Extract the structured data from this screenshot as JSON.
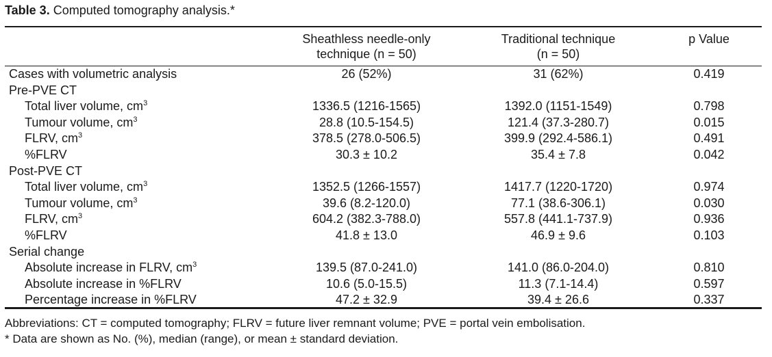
{
  "caption": {
    "label": "Table 3.",
    "text": " Computed tomography analysis.*"
  },
  "headers": {
    "col1_line1": "Sheathless needle-only",
    "col1_line2": "technique (n = 50)",
    "col2_line1": "Traditional technique",
    "col2_line2": "(n = 50)",
    "col3": "p Value"
  },
  "rows": [
    {
      "label": "Cases with volumetric analysis",
      "unit": "",
      "c1": "26 (52%)",
      "c2": "31 (62%)",
      "c3": "0.419"
    },
    {
      "label": "Pre-PVE CT",
      "unit": "",
      "c1": "",
      "c2": "",
      "c3": ""
    },
    {
      "label": "Total liver volume, cm",
      "unit": "3",
      "c1": "1336.5 (1216-1565)",
      "c2": "1392.0 (1151-1549)",
      "c3": "0.798"
    },
    {
      "label": "Tumour volume, cm",
      "unit": "3",
      "c1": "28.8 (10.5-154.5)",
      "c2": "121.4 (37.3-280.7)",
      "c3": "0.015"
    },
    {
      "label": "FLRV, cm",
      "unit": "3",
      "c1": "378.5 (278.0-506.5)",
      "c2": "399.9 (292.4-586.1)",
      "c3": "0.491"
    },
    {
      "label": "%FLRV",
      "unit": "",
      "c1": "30.3 ± 10.2",
      "c2": "35.4 ± 7.8",
      "c3": "0.042"
    },
    {
      "label": "Post-PVE CT",
      "unit": "",
      "c1": "",
      "c2": "",
      "c3": ""
    },
    {
      "label": "Total liver volume, cm",
      "unit": "3",
      "c1": "1352.5 (1266-1557)",
      "c2": "1417.7 (1220-1720)",
      "c3": "0.974"
    },
    {
      "label": "Tumour volume, cm",
      "unit": "3",
      "c1": "39.6 (8.2-120.0)",
      "c2": "77.1 (38.6-306.1)",
      "c3": "0.030"
    },
    {
      "label": "FLRV, cm",
      "unit": "3",
      "c1": "604.2 (382.3-788.0)",
      "c2": "557.8 (441.1-737.9)",
      "c3": "0.936"
    },
    {
      "label": "%FLRV",
      "unit": "",
      "c1": "41.8 ± 13.0",
      "c2": "46.9 ± 9.6",
      "c3": "0.103"
    },
    {
      "label": "Serial change",
      "unit": "",
      "c1": "",
      "c2": "",
      "c3": ""
    },
    {
      "label": "Absolute increase in FLRV, cm",
      "unit": "3",
      "c1": "139.5 (87.0-241.0)",
      "c2": "141.0 (86.0-204.0)",
      "c3": "0.810"
    },
    {
      "label": "Absolute increase in %FLRV",
      "unit": "",
      "c1": "10.6 (5.0-15.5)",
      "c2": "11.3 (7.1-14.4)",
      "c3": "0.597"
    },
    {
      "label": "Percentage increase in %FLRV",
      "unit": "",
      "c1": "47.2 ± 32.9",
      "c2": "39.4 ± 26.6",
      "c3": "0.337"
    }
  ],
  "footnotes": {
    "abbreviations": "Abbreviations: CT = computed tomography; FLRV = future liver remnant volume; PVE = portal vein embolisation.",
    "asterisk": "* Data are shown as No. (%), median (range), or mean ± standard deviation."
  }
}
